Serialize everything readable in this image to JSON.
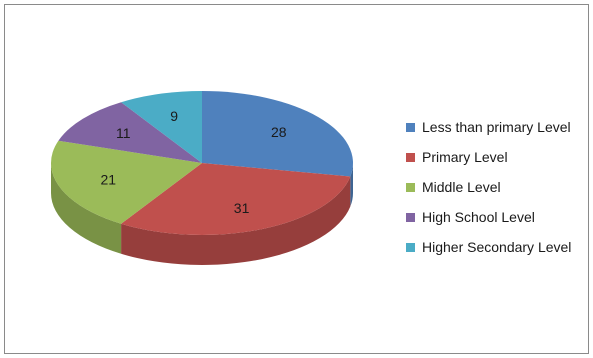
{
  "chart_data": {
    "type": "pie",
    "style": "3d",
    "title": "",
    "legend_position": "right",
    "categories": [
      "Less than primary Level",
      "Primary Level",
      "Middle Level",
      "High School Level",
      "Higher Secondary Level"
    ],
    "values": [
      28,
      31,
      21,
      11,
      9
    ],
    "colors": [
      "#4F81BD",
      "#C0504D",
      "#9BBB59",
      "#8064A2",
      "#4BACC6"
    ]
  }
}
